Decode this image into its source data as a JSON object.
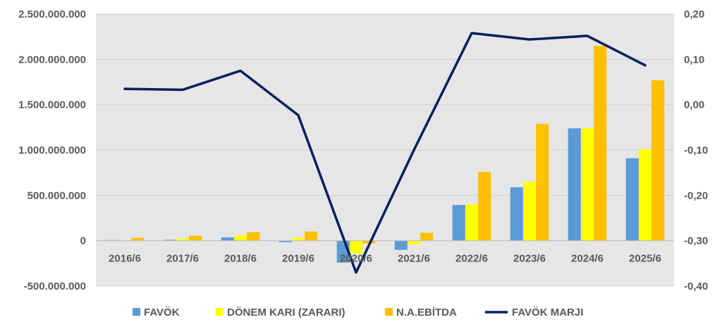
{
  "chart_data": {
    "type": "bar",
    "categories": [
      "2016/6",
      "2017/6",
      "2018/6",
      "2019/6",
      "2020/6",
      "2021/6",
      "2022/6",
      "2023/6",
      "2024/6",
      "2025/6"
    ],
    "series": [
      {
        "name": "FAVÖK",
        "type": "bar",
        "axis": "left",
        "color": "#5b9bd5",
        "values": [
          8000000,
          10000000,
          37000000,
          -15000000,
          -240000000,
          -100000000,
          395000000,
          590000000,
          1240000000,
          910000000
        ]
      },
      {
        "name": "DÖNEM KARI (ZARARI)",
        "type": "bar",
        "axis": "left",
        "color": "#ffff00",
        "values": [
          2000000,
          22000000,
          58000000,
          32000000,
          -140000000,
          -40000000,
          400000000,
          650000000,
          1240000000,
          1010000000
        ]
      },
      {
        "name": "N.A.EBİTDA",
        "type": "bar",
        "axis": "left",
        "color": "#ffc000",
        "values": [
          32000000,
          55000000,
          95000000,
          102000000,
          -30000000,
          88000000,
          760000000,
          1290000000,
          2150000000,
          1770000000
        ]
      },
      {
        "name": "FAVÖK MARJI",
        "type": "line",
        "axis": "right",
        "color": "#002060",
        "values": [
          0.035,
          0.033,
          0.075,
          -0.023,
          -0.37,
          -0.1,
          0.158,
          0.144,
          0.152,
          0.087
        ]
      }
    ],
    "y_left": {
      "ylim": [
        -500000000,
        2500000000
      ],
      "tick_values": [
        -500000000,
        0,
        500000000,
        1000000000,
        1500000000,
        2000000000,
        2500000000
      ],
      "tick_labels": [
        "-500.000.000",
        "0",
        "500.000.000",
        "1.000.000.000",
        "1.500.000.000",
        "2.000.000.000",
        "2.500.000.000"
      ]
    },
    "y_right": {
      "ylim": [
        -0.4,
        0.2
      ],
      "tick_values": [
        -0.4,
        -0.3,
        -0.2,
        -0.1,
        0.0,
        0.1,
        0.2
      ],
      "tick_labels": [
        "-0,40",
        "-0,30",
        "-0,20",
        "-0,10",
        "0,00",
        "0,10",
        "0,20"
      ]
    },
    "grid": true,
    "legend_position": "bottom"
  }
}
